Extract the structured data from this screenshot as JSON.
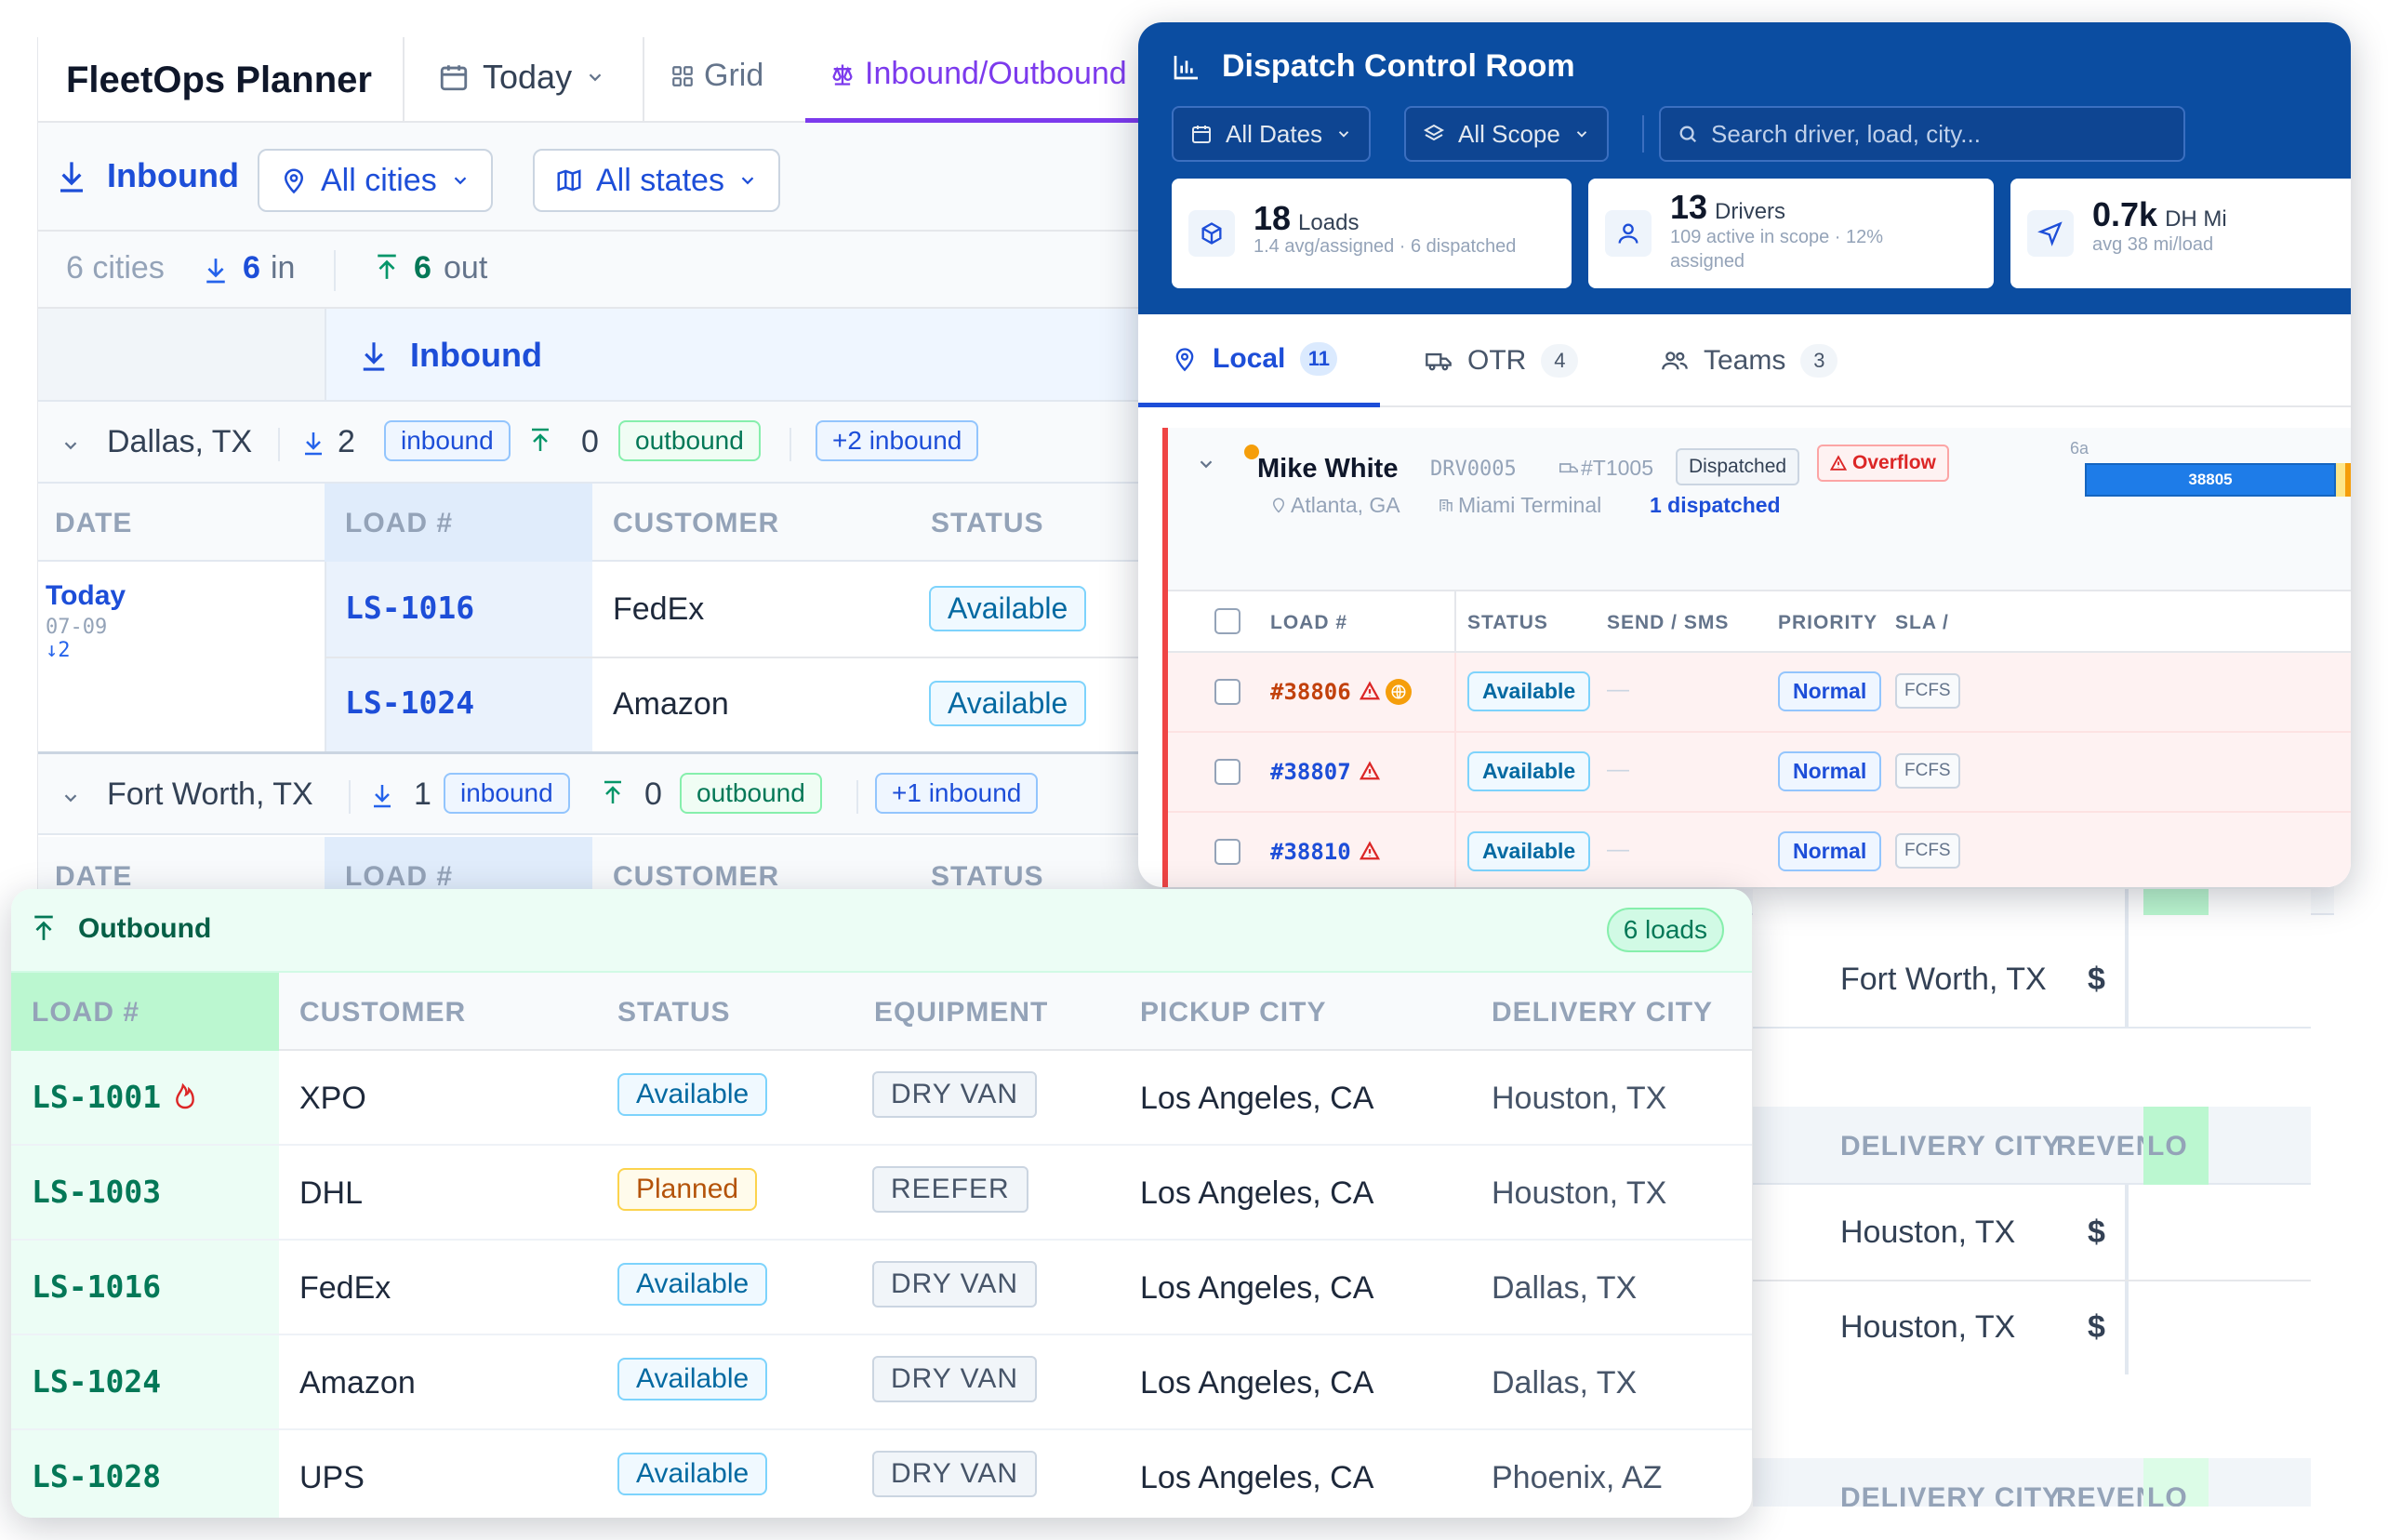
{
  "planner": {
    "brand": "FleetOps Planner",
    "today_label": "Today",
    "grid_label": "Grid",
    "io_label": "Inbound/Outbound",
    "filter": {
      "direction": "Inbound",
      "cities": "All cities",
      "states": "All states"
    },
    "counts": {
      "cities": "6 cities",
      "in_num": "6",
      "in_label": "in",
      "out_num": "6",
      "out_label": "out"
    },
    "section_title": "Inbound",
    "groups": [
      {
        "city": "Dallas, TX",
        "in_count": "2",
        "in_label": "inbound",
        "out_count": "0",
        "out_label": "outbound",
        "extra": "+2 inbound"
      },
      {
        "city": "Fort Worth, TX",
        "in_count": "1",
        "in_label": "inbound",
        "out_count": "0",
        "out_label": "outbound",
        "extra": "+1 inbound"
      }
    ],
    "columns": {
      "date": "DATE",
      "load": "LOAD #",
      "customer": "CUSTOMER",
      "status": "STATUS"
    },
    "date_cell": {
      "label": "Today",
      "date": "07-09",
      "count": "↓2"
    },
    "rows": [
      {
        "load": "LS-1016",
        "customer": "FedEx",
        "status": "Available"
      },
      {
        "load": "LS-1024",
        "customer": "Amazon",
        "status": "Available"
      }
    ],
    "right_stub": {
      "city_a": "Fort Worth, TX",
      "dollar": "$",
      "col_delivery": "DELIVERY CITY",
      "col_revenue": "REVENU",
      "col_lo": "LO",
      "city_b": "Houston, TX",
      "city_c": "Houston, TX"
    }
  },
  "dispatch": {
    "title": "Dispatch Control Room",
    "date_filter": "All Dates",
    "scope_filter": "All Scope",
    "search_placeholder": "Search driver, load, city...",
    "stats": [
      {
        "value": "18",
        "label": "Loads",
        "sub": "1.4 avg/assigned · 6 dispatched"
      },
      {
        "value": "13",
        "label": "Drivers",
        "sub1": "109 active in scope · 12%",
        "sub2": "assigned"
      },
      {
        "value": "0.7k",
        "label": "DH Mi",
        "sub": "avg 38 mi/load"
      }
    ],
    "tabs": [
      {
        "label": "Local",
        "count": "11"
      },
      {
        "label": "OTR",
        "count": "4"
      },
      {
        "label": "Teams",
        "count": "3"
      }
    ],
    "driver": {
      "name": "Mike White",
      "id": "DRV0005",
      "truck": "#T1005",
      "status": "Dispatched",
      "alert": "Overflow",
      "origin": "Atlanta, GA",
      "terminal": "Miami Terminal",
      "dispatched": "1 dispatched",
      "timeline_start": "6a",
      "timeline_load": "38805"
    },
    "columns": {
      "load": "LOAD #",
      "status": "STATUS",
      "send": "SEND / SMS",
      "priority": "PRIORITY",
      "sla": "SLA /"
    },
    "loads": [
      {
        "load": "#38806",
        "status": "Available",
        "send": "—",
        "priority": "Normal",
        "sla": "FCFS"
      },
      {
        "load": "#38807",
        "status": "Available",
        "send": "—",
        "priority": "Normal",
        "sla": "FCFS"
      },
      {
        "load": "#38810",
        "status": "Available",
        "send": "—",
        "priority": "Normal",
        "sla": "FCFS"
      }
    ],
    "colors": {
      "header": "#0b4da1",
      "alert": "#ef4444",
      "orange": "#f59e0b"
    }
  },
  "outbound": {
    "title": "Outbound",
    "count": "6 loads",
    "columns": {
      "load": "LOAD #",
      "customer": "CUSTOMER",
      "status": "STATUS",
      "equipment": "EQUIPMENT",
      "pickup": "PICKUP CITY",
      "delivery": "DELIVERY CITY"
    },
    "rows": [
      {
        "load": "LS-1001",
        "hot": true,
        "customer": "XPO",
        "status": "Available",
        "equipment": "DRY VAN",
        "pickup": "Los Angeles, CA",
        "delivery": "Houston, TX"
      },
      {
        "load": "LS-1003",
        "customer": "DHL",
        "status": "Planned",
        "equipment": "REEFER",
        "pickup": "Los Angeles, CA",
        "delivery": "Houston, TX"
      },
      {
        "load": "LS-1016",
        "customer": "FedEx",
        "status": "Available",
        "equipment": "DRY VAN",
        "pickup": "Los Angeles, CA",
        "delivery": "Dallas, TX"
      },
      {
        "load": "LS-1024",
        "customer": "Amazon",
        "status": "Available",
        "equipment": "DRY VAN",
        "pickup": "Los Angeles, CA",
        "delivery": "Dallas, TX"
      },
      {
        "load": "LS-1028",
        "customer": "UPS",
        "status": "Available",
        "equipment": "DRY VAN",
        "pickup": "Los Angeles, CA",
        "delivery": "Phoenix, AZ"
      }
    ]
  }
}
